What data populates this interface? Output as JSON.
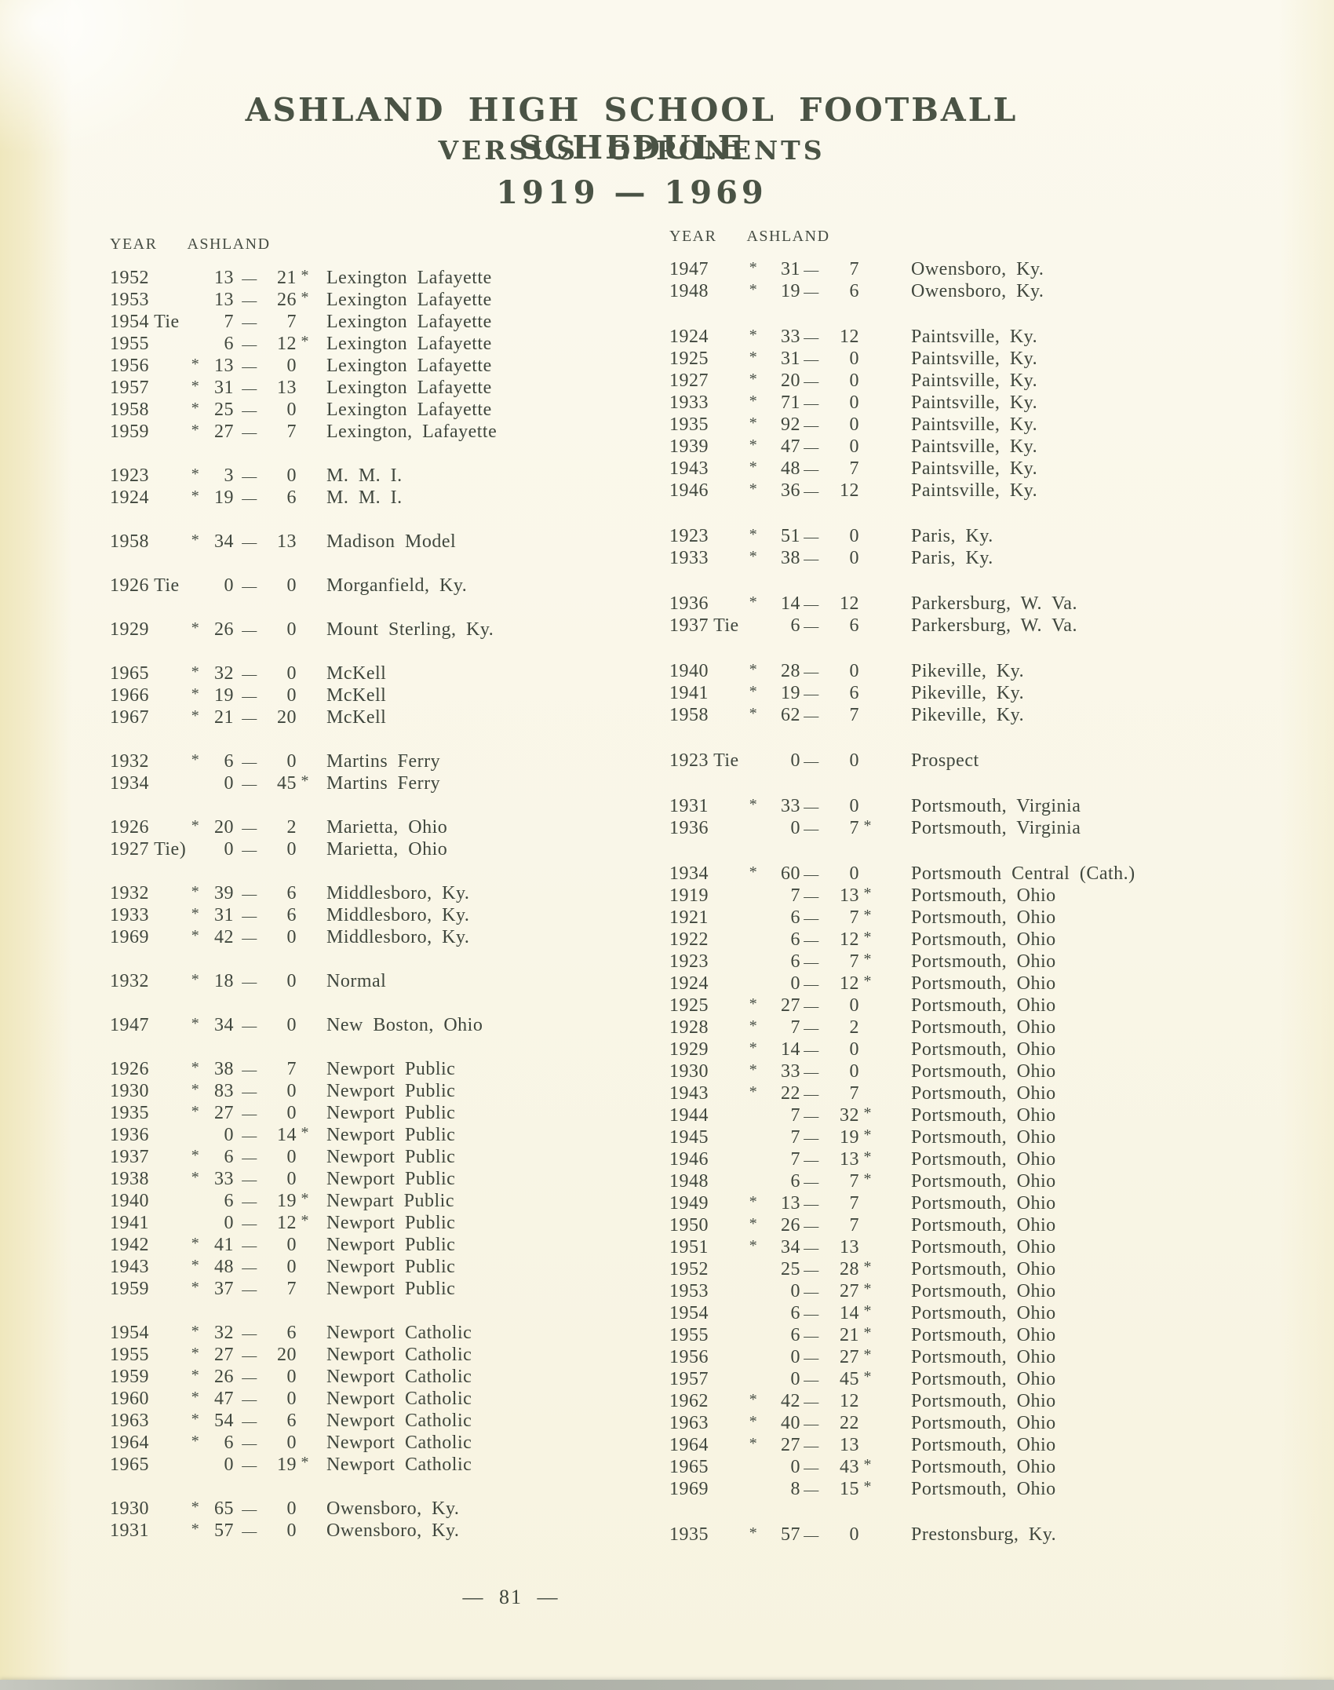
{
  "title": {
    "line1": "ASHLAND HIGH SCHOOL FOOTBALL SCHEDULE",
    "line2": "VERSUS OPPONENTS",
    "line3": "1919 — 1969"
  },
  "legend": {
    "marker": "*",
    "dash": "—"
  },
  "colors": {
    "ink": "#40473e",
    "title_ink": "#4a5345",
    "paper": "#f9f6e7",
    "edge_yellow": "#efe7bd",
    "bottom_bar": "#b3b6ad"
  },
  "columns": {
    "left": {
      "header": {
        "year": "YEAR",
        "ashland": "ASHLAND"
      },
      "groups": [
        [
          [
            "1952",
            "",
            "R",
            "13",
            "21",
            "Lexington Lafayette"
          ],
          [
            "1953",
            "",
            "R",
            "13",
            "26",
            "Lexington Lafayette"
          ],
          [
            "1954",
            "Tie",
            "",
            "7",
            "7",
            "Lexington Lafayette"
          ],
          [
            "1955",
            "",
            "R",
            "6",
            "12",
            "Lexington Lafayette"
          ],
          [
            "1956",
            "",
            "L",
            "13",
            "0",
            "Lexington Lafayette"
          ],
          [
            "1957",
            "",
            "L",
            "31",
            "13",
            "Lexington Lafayette"
          ],
          [
            "1958",
            "",
            "L",
            "25",
            "0",
            "Lexington Lafayette"
          ],
          [
            "1959",
            "",
            "L",
            "27",
            "7",
            "Lexington, Lafayette"
          ]
        ],
        [
          [
            "1923",
            "",
            "L",
            "3",
            "0",
            "M. M. I."
          ],
          [
            "1924",
            "",
            "L",
            "19",
            "6",
            "M. M. I."
          ]
        ],
        [
          [
            "1958",
            "",
            "L",
            "34",
            "13",
            "Madison Model"
          ]
        ],
        [
          [
            "1926",
            "Tie",
            "",
            "0",
            "0",
            "Morganfield, Ky."
          ]
        ],
        [
          [
            "1929",
            "",
            "L",
            "26",
            "0",
            "Mount Sterling, Ky."
          ]
        ],
        [
          [
            "1965",
            "",
            "L",
            "32",
            "0",
            "McKell"
          ],
          [
            "1966",
            "",
            "L",
            "19",
            "0",
            "McKell"
          ],
          [
            "1967",
            "",
            "L",
            "21",
            "20",
            "McKell"
          ]
        ],
        [
          [
            "1932",
            "",
            "L",
            "6",
            "0",
            "Martins Ferry"
          ],
          [
            "1934",
            "",
            "R",
            "0",
            "45",
            "Martins Ferry"
          ]
        ],
        [
          [
            "1926",
            "",
            "L",
            "20",
            "2",
            "Marietta, Ohio"
          ],
          [
            "1927",
            "Tie)",
            "",
            "0",
            "0",
            "Marietta, Ohio"
          ]
        ],
        [
          [
            "1932",
            "",
            "L",
            "39",
            "6",
            "Middlesboro, Ky."
          ],
          [
            "1933",
            "",
            "L",
            "31",
            "6",
            "Middlesboro, Ky."
          ],
          [
            "1969",
            "",
            "L",
            "42",
            "0",
            "Middlesboro, Ky."
          ]
        ],
        [
          [
            "1932",
            "",
            "L",
            "18",
            "0",
            "Normal"
          ]
        ],
        [
          [
            "1947",
            "",
            "L",
            "34",
            "0",
            "New Boston, Ohio"
          ]
        ],
        [
          [
            "1926",
            "",
            "L",
            "38",
            "7",
            "Newport Public"
          ],
          [
            "1930",
            "",
            "L",
            "83",
            "0",
            "Newport Public"
          ],
          [
            "1935",
            "",
            "L",
            "27",
            "0",
            "Newport Public"
          ],
          [
            "1936",
            "",
            "R",
            "0",
            "14",
            "Newport Public"
          ],
          [
            "1937",
            "",
            "L",
            "6",
            "0",
            "Newport Public"
          ],
          [
            "1938",
            "",
            "L",
            "33",
            "0",
            "Newport Public"
          ],
          [
            "1940",
            "",
            "R",
            "6",
            "19",
            "Newpart Public"
          ],
          [
            "1941",
            "",
            "R",
            "0",
            "12",
            "Newport Public"
          ],
          [
            "1942",
            "",
            "L",
            "41",
            "0",
            "Newport Public"
          ],
          [
            "1943",
            "",
            "L",
            "48",
            "0",
            "Newport Public"
          ],
          [
            "1959",
            "",
            "L",
            "37",
            "7",
            "Newport Public"
          ]
        ],
        [
          [
            "1954",
            "",
            "L",
            "32",
            "6",
            "Newport Catholic"
          ],
          [
            "1955",
            "",
            "L",
            "27",
            "20",
            "Newport Catholic"
          ],
          [
            "1959",
            "",
            "L",
            "26",
            "0",
            "Newport Catholic"
          ],
          [
            "1960",
            "",
            "L",
            "47",
            "0",
            "Newport Catholic"
          ],
          [
            "1963",
            "",
            "L",
            "54",
            "6",
            "Newport Catholic"
          ],
          [
            "1964",
            "",
            "L",
            "6",
            "0",
            "Newport Catholic"
          ],
          [
            "1965",
            "",
            "R",
            "0",
            "19",
            "Newport Catholic"
          ]
        ],
        [
          [
            "1930",
            "",
            "L",
            "65",
            "0",
            "Owensboro, Ky."
          ],
          [
            "1931",
            "",
            "L",
            "57",
            "0",
            "Owensboro, Ky."
          ]
        ]
      ]
    },
    "right": {
      "header": {
        "year": "YEAR",
        "ashland": "ASHLAND"
      },
      "groups": [
        [
          [
            "1947",
            "",
            "L",
            "31",
            "7",
            "Owensboro, Ky."
          ],
          [
            "1948",
            "",
            "L",
            "19",
            "6",
            "Owensboro, Ky."
          ]
        ],
        [
          [
            "1924",
            "",
            "L",
            "33",
            "12",
            "Paintsville, Ky."
          ],
          [
            "1925",
            "",
            "L",
            "31",
            "0",
            "Paintsville, Ky."
          ],
          [
            "1927",
            "",
            "L",
            "20",
            "0",
            "Paintsville, Ky."
          ],
          [
            "1933",
            "",
            "L",
            "71",
            "0",
            "Paintsville, Ky."
          ],
          [
            "1935",
            "",
            "L",
            "92",
            "0",
            "Paintsville, Ky."
          ],
          [
            "1939",
            "",
            "L",
            "47",
            "0",
            "Paintsville, Ky."
          ],
          [
            "1943",
            "",
            "L",
            "48",
            "7",
            "Paintsville, Ky."
          ],
          [
            "1946",
            "",
            "L",
            "36",
            "12",
            "Paintsville, Ky."
          ]
        ],
        [
          [
            "1923",
            "",
            "L",
            "51",
            "0",
            "Paris, Ky."
          ],
          [
            "1933",
            "",
            "L",
            "38",
            "0",
            "Paris, Ky."
          ]
        ],
        [
          [
            "1936",
            "",
            "L",
            "14",
            "12",
            "Parkersburg, W. Va."
          ],
          [
            "1937",
            "Tie",
            "",
            "6",
            "6",
            "Parkersburg, W. Va."
          ]
        ],
        [
          [
            "1940",
            "",
            "L",
            "28",
            "0",
            "Pikeville, Ky."
          ],
          [
            "1941",
            "",
            "L",
            "19",
            "6",
            "Pikeville, Ky."
          ],
          [
            "1958",
            "",
            "L",
            "62",
            "7",
            "Pikeville, Ky."
          ]
        ],
        [
          [
            "1923",
            "Tie",
            "",
            "0",
            "0",
            "Prospect"
          ]
        ],
        [
          [
            "1931",
            "",
            "L",
            "33",
            "0",
            "Portsmouth, Virginia"
          ],
          [
            "1936",
            "",
            "R",
            "0",
            "7",
            "Portsmouth, Virginia"
          ]
        ],
        [
          [
            "1934",
            "",
            "L",
            "60",
            "0",
            "Portsmouth Central (Cath.)"
          ],
          [
            "1919",
            "",
            "R",
            "7",
            "13",
            "Portsmouth, Ohio"
          ],
          [
            "1921",
            "",
            "R",
            "6",
            "7",
            "Portsmouth, Ohio"
          ],
          [
            "1922",
            "",
            "R",
            "6",
            "12",
            "Portsmouth, Ohio"
          ],
          [
            "1923",
            "",
            "R",
            "6",
            "7",
            "Portsmouth, Ohio"
          ],
          [
            "1924",
            "",
            "R",
            "0",
            "12",
            "Portsmouth, Ohio"
          ],
          [
            "1925",
            "",
            "L",
            "27",
            "0",
            "Portsmouth, Ohio"
          ],
          [
            "1928",
            "",
            "L",
            "7",
            "2",
            "Portsmouth, Ohio"
          ],
          [
            "1929",
            "",
            "L",
            "14",
            "0",
            "Portsmouth, Ohio"
          ],
          [
            "1930",
            "",
            "L",
            "33",
            "0",
            "Portsmouth, Ohio"
          ],
          [
            "1943",
            "",
            "L",
            "22",
            "7",
            "Portsmouth, Ohio"
          ],
          [
            "1944",
            "",
            "R",
            "7",
            "32",
            "Portsmouth, Ohio"
          ],
          [
            "1945",
            "",
            "R",
            "7",
            "19",
            "Portsmouth, Ohio"
          ],
          [
            "1946",
            "",
            "R",
            "7",
            "13",
            "Portsmouth, Ohio"
          ],
          [
            "1948",
            "",
            "R",
            "6",
            "7",
            "Portsmouth, Ohio"
          ],
          [
            "1949",
            "",
            "L",
            "13",
            "7",
            "Portsmouth, Ohio"
          ],
          [
            "1950",
            "",
            "L",
            "26",
            "7",
            "Portsmouth, Ohio"
          ],
          [
            "1951",
            "",
            "L",
            "34",
            "13",
            "Portsmouth, Ohio"
          ],
          [
            "1952",
            "",
            "R",
            "25",
            "28",
            "Portsmouth, Ohio"
          ],
          [
            "1953",
            "",
            "R",
            "0",
            "27",
            "Portsmouth, Ohio"
          ],
          [
            "1954",
            "",
            "R",
            "6",
            "14",
            "Portsmouth, Ohio"
          ],
          [
            "1955",
            "",
            "R",
            "6",
            "21",
            "Portsmouth, Ohio"
          ],
          [
            "1956",
            "",
            "R",
            "0",
            "27",
            "Portsmouth, Ohio"
          ],
          [
            "1957",
            "",
            "R",
            "0",
            "45",
            "Portsmouth, Ohio"
          ],
          [
            "1962",
            "",
            "L",
            "42",
            "12",
            "Portsmouth, Ohio"
          ],
          [
            "1963",
            "",
            "L",
            "40",
            "22",
            "Portsmouth, Ohio"
          ],
          [
            "1964",
            "",
            "L",
            "27",
            "13",
            "Portsmouth, Ohio"
          ],
          [
            "1965",
            "",
            "R",
            "0",
            "43",
            "Portsmouth, Ohio"
          ],
          [
            "1969",
            "",
            "R",
            "8",
            "15",
            "Portsmouth, Ohio"
          ]
        ],
        [
          [
            "1935",
            "",
            "L",
            "57",
            "0",
            "Prestonsburg, Ky."
          ]
        ]
      ]
    }
  },
  "footer": {
    "page_number": "81",
    "label": "— 81 —"
  }
}
